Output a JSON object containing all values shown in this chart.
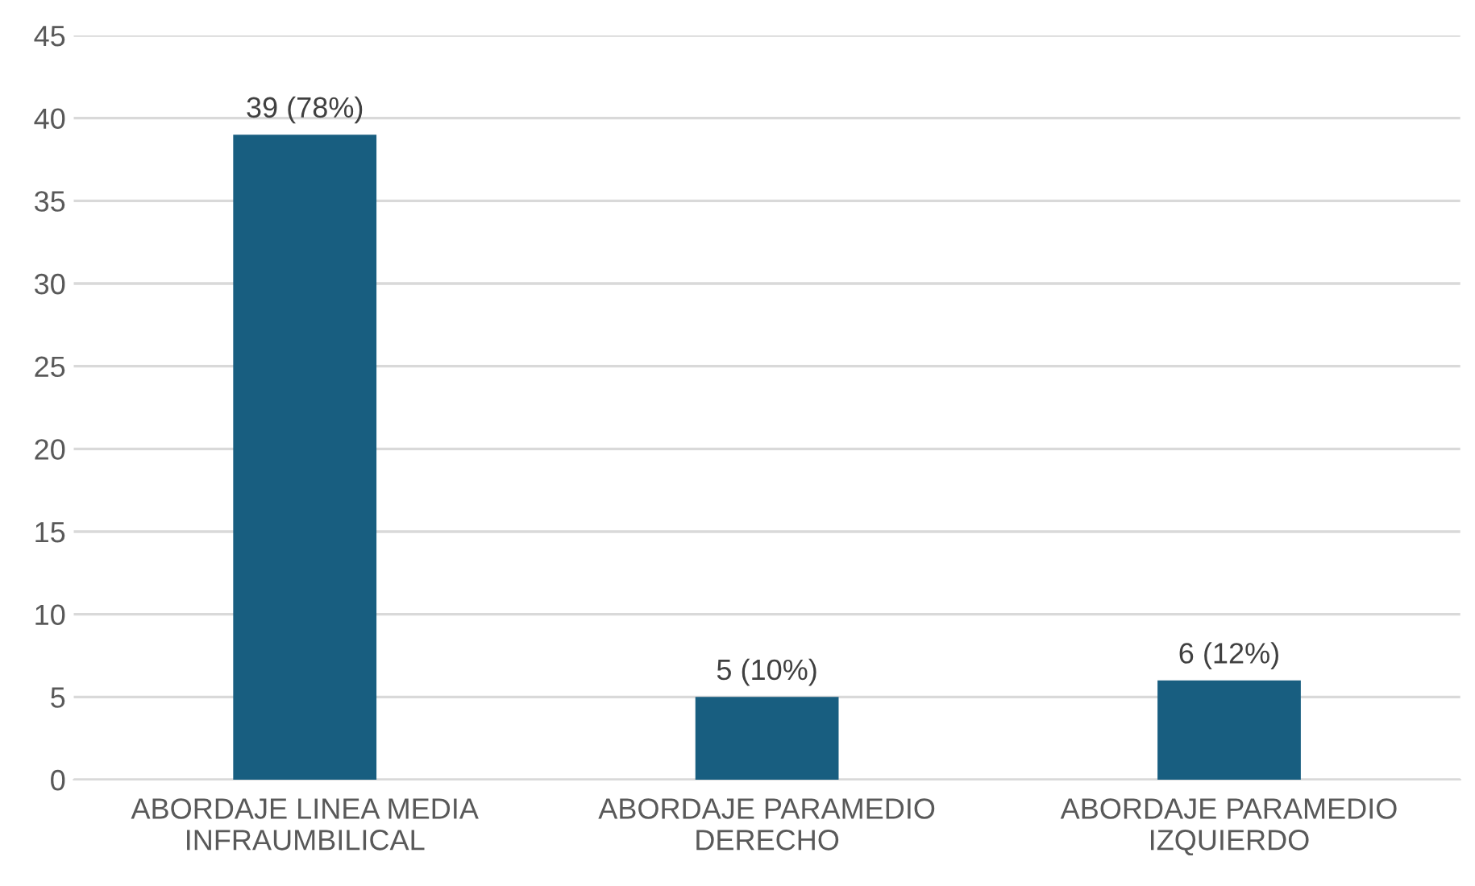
{
  "chart_data": {
    "type": "bar",
    "categories": [
      "ABORDAJE LINEA MEDIA\nINFRAUMBILICAL",
      "ABORDAJE PARAMEDIO\nDERECHO",
      "ABORDAJE PARAMEDIO\nIZQUIERDO"
    ],
    "values": [
      39,
      5,
      6
    ],
    "value_labels": [
      "39 (78%)",
      "5 (10%)",
      "6 (12%)"
    ],
    "color": "#185e80",
    "ylim": [
      0,
      45
    ],
    "yticks": [
      0,
      5,
      10,
      15,
      20,
      25,
      30,
      35,
      40,
      45
    ],
    "grid": "y"
  }
}
